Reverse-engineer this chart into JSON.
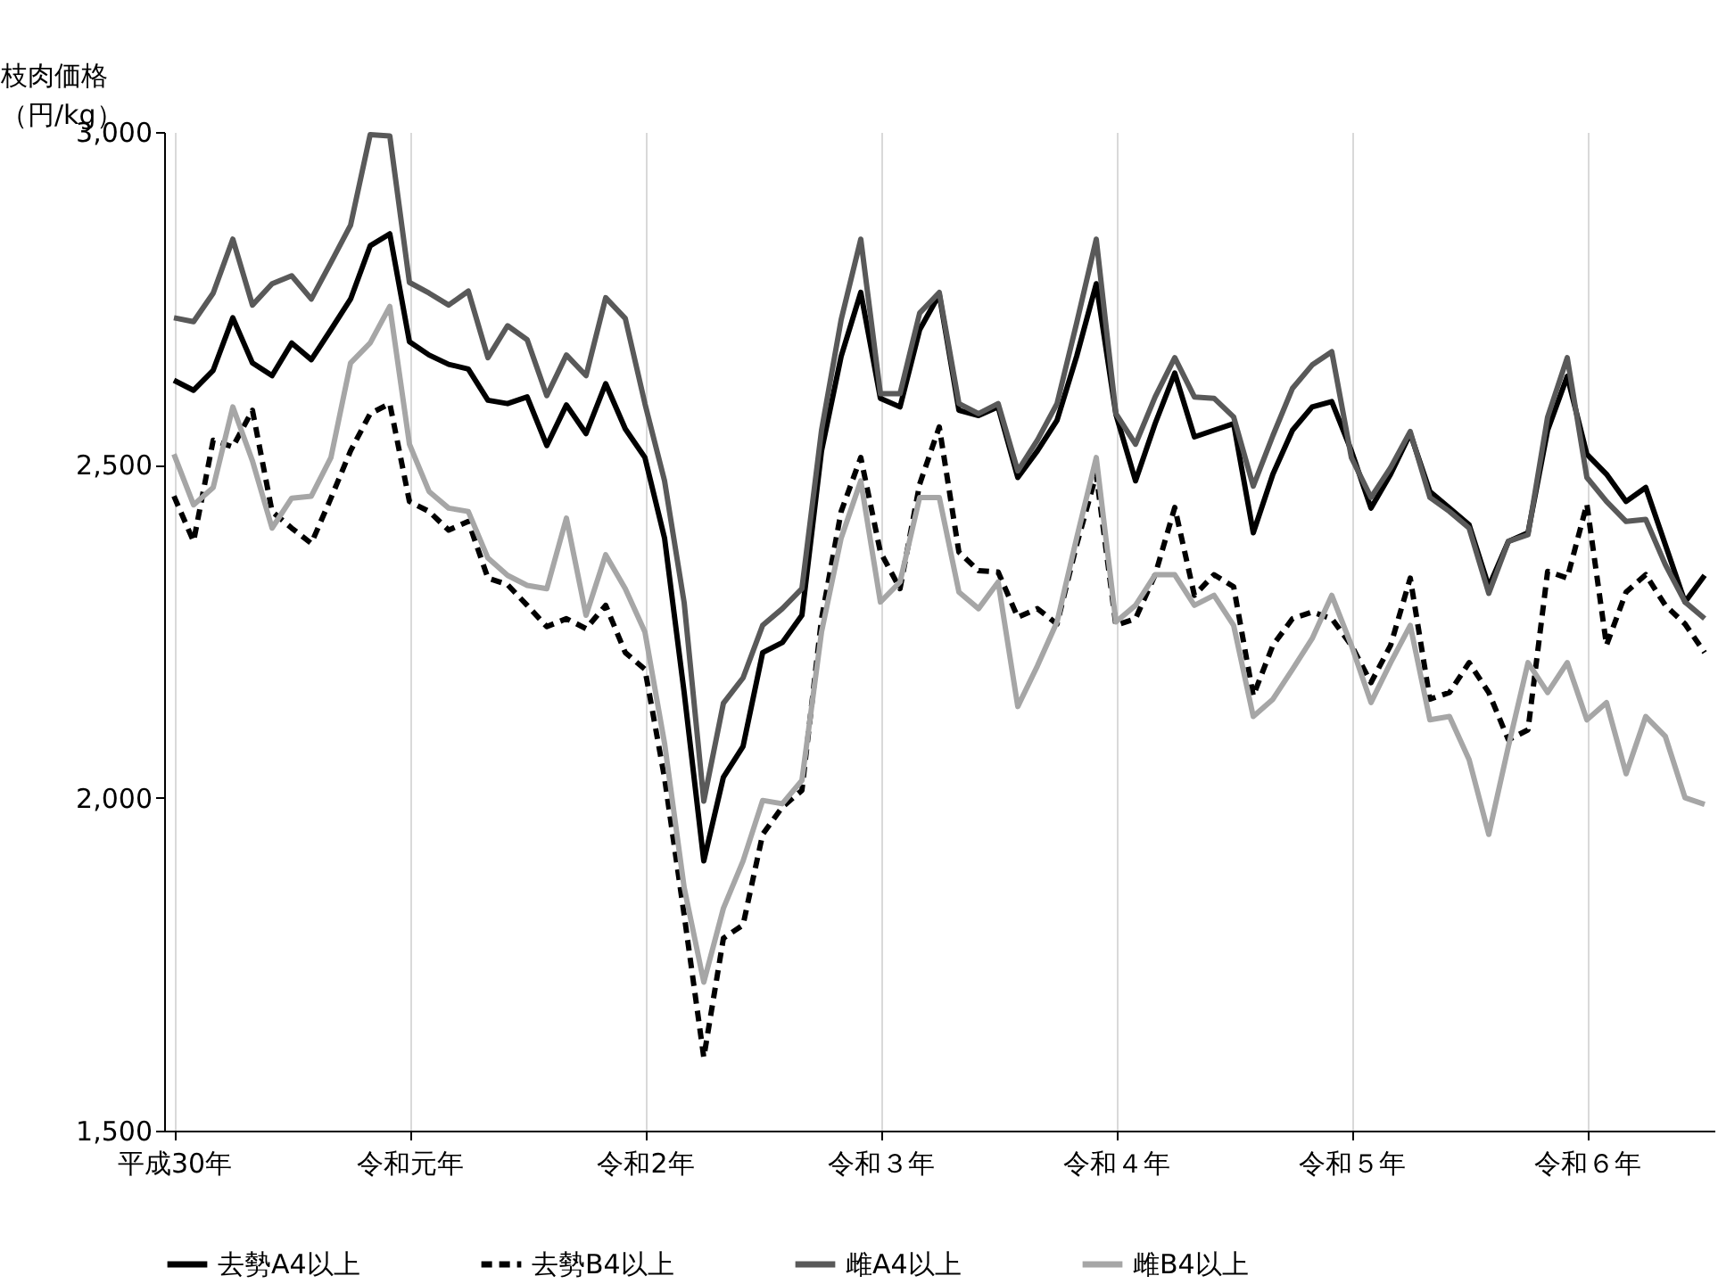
{
  "chart_data": {
    "type": "line",
    "ylabel": "枝肉価格（円/kg）",
    "categories": [
      "平成30年",
      null,
      null,
      null,
      null,
      null,
      null,
      null,
      null,
      null,
      null,
      null,
      "令和元年",
      null,
      null,
      null,
      null,
      null,
      null,
      null,
      null,
      null,
      null,
      null,
      "令和2年",
      null,
      null,
      null,
      null,
      null,
      null,
      null,
      null,
      null,
      null,
      null,
      "令和３年",
      null,
      null,
      null,
      null,
      null,
      null,
      null,
      null,
      null,
      null,
      null,
      "令和４年",
      null,
      null,
      null,
      null,
      null,
      null,
      null,
      null,
      null,
      null,
      null,
      "令和５年",
      null,
      null,
      null,
      null,
      null,
      null,
      null,
      null,
      null,
      null,
      null,
      "令和６年",
      null,
      null,
      null,
      null,
      null,
      null
    ],
    "ylim": [
      1500,
      3000
    ],
    "yticks": [
      {
        "value": 1500,
        "label": "1,500"
      },
      {
        "value": 2000,
        "label": "2,000"
      },
      {
        "value": 2500,
        "label": "2,500"
      },
      {
        "value": 3000,
        "label": "3,000"
      }
    ],
    "grid": "x",
    "legend": "bottom",
    "series": [
      {
        "name": "去勢A4以上",
        "color": "#000000",
        "line_style": "solid",
        "values": [
          2627,
          2612,
          2642,
          2721,
          2653,
          2634,
          2683,
          2658,
          2703,
          2749,
          2829,
          2847,
          2685,
          2665,
          2651,
          2644,
          2597,
          2592,
          2602,
          2529,
          2590,
          2547,
          2622,
          2554,
          2511,
          2390,
          2158,
          1905,
          2031,
          2077,
          2218,
          2233,
          2274,
          2521,
          2663,
          2759,
          2600,
          2587,
          2703,
          2756,
          2582,
          2574,
          2587,
          2481,
          2521,
          2567,
          2663,
          2772,
          2576,
          2476,
          2562,
          2638,
          2542,
          2552,
          2562,
          2398,
          2486,
          2552,
          2587,
          2595,
          2521,
          2435,
          2486,
          2547,
          2460,
          2435,
          2410,
          2317,
          2385,
          2398,
          2552,
          2633,
          2516,
          2486,
          2445,
          2466,
          2380,
          2294,
          2334
        ]
      },
      {
        "name": "去勢B4以上",
        "color": "#000000",
        "line_style": "dashed",
        "values": [
          2453,
          2385,
          2537,
          2527,
          2582,
          2430,
          2405,
          2382,
          2450,
          2521,
          2577,
          2592,
          2445,
          2430,
          2402,
          2415,
          2330,
          2320,
          2289,
          2257,
          2269,
          2254,
          2289,
          2218,
          2193,
          2030,
          1824,
          1610,
          1789,
          1809,
          1945,
          1986,
          2011,
          2269,
          2430,
          2511,
          2369,
          2314,
          2471,
          2557,
          2369,
          2341,
          2339,
          2271,
          2284,
          2261,
          2380,
          2486,
          2259,
          2269,
          2335,
          2436,
          2304,
          2335,
          2317,
          2153,
          2229,
          2269,
          2279,
          2269,
          2229,
          2173,
          2229,
          2330,
          2148,
          2158,
          2203,
          2158,
          2087,
          2102,
          2340,
          2330,
          2441,
          2229,
          2309,
          2335,
          2289,
          2261,
          2218
        ]
      },
      {
        "name": "雌A4以上",
        "color": "#595959",
        "line_style": "solid",
        "values": [
          2721,
          2715,
          2758,
          2839,
          2740,
          2772,
          2784,
          2749,
          2804,
          2860,
          2996,
          2994,
          2774,
          2758,
          2740,
          2761,
          2661,
          2709,
          2688,
          2604,
          2665,
          2634,
          2751,
          2720,
          2592,
          2476,
          2293,
          1995,
          2142,
          2180,
          2259,
          2284,
          2314,
          2552,
          2718,
          2839,
          2607,
          2607,
          2728,
          2759,
          2592,
          2577,
          2592,
          2491,
          2537,
          2592,
          2713,
          2839,
          2577,
          2531,
          2602,
          2661,
          2602,
          2600,
          2572,
          2468,
          2544,
          2615,
          2650,
          2670,
          2511,
          2451,
          2496,
          2550,
          2451,
          2430,
          2405,
          2307,
          2385,
          2395,
          2572,
          2661,
          2481,
          2445,
          2415,
          2418,
          2350,
          2294,
          2269
        ]
      },
      {
        "name": "雌B4以上",
        "color": "#a6a6a6",
        "line_style": "solid",
        "values": [
          2516,
          2440,
          2466,
          2587,
          2506,
          2405,
          2450,
          2453,
          2511,
          2653,
          2683,
          2738,
          2531,
          2460,
          2435,
          2430,
          2360,
          2334,
          2319,
          2314,
          2420,
          2274,
          2365,
          2314,
          2249,
          2082,
          1865,
          1723,
          1834,
          1905,
          1996,
          1991,
          2026,
          2249,
          2390,
          2476,
          2294,
          2324,
          2451,
          2451,
          2309,
          2284,
          2324,
          2137,
          2198,
          2264,
          2390,
          2511,
          2264,
          2289,
          2335,
          2335,
          2289,
          2304,
          2259,
          2122,
          2148,
          2193,
          2239,
          2304,
          2229,
          2143,
          2203,
          2259,
          2117,
          2122,
          2057,
          1945,
          2077,
          2203,
          2158,
          2203,
          2117,
          2143,
          2036,
          2122,
          2092,
          2000,
          1990
        ]
      }
    ]
  }
}
